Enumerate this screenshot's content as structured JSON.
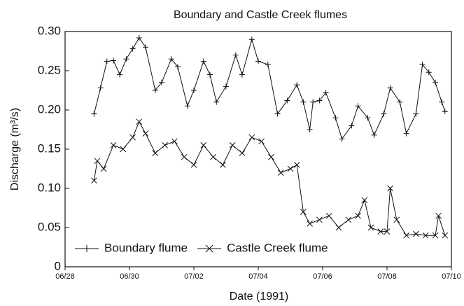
{
  "chart_data": {
    "type": "line",
    "title": "Boundary and Castle Creek flumes",
    "x_label": "Date (1991)",
    "y_label": "Discharge (m³/s)",
    "xlim": [
      28,
      40
    ],
    "xticks": [
      {
        "value": 28,
        "label": "06/28"
      },
      {
        "value": 30,
        "label": "06/30"
      },
      {
        "value": 32,
        "label": "07/02"
      },
      {
        "value": 34,
        "label": "07/04"
      },
      {
        "value": 36,
        "label": "07/06"
      },
      {
        "value": 38,
        "label": "07/08"
      },
      {
        "value": 40,
        "label": "07/10"
      }
    ],
    "ylim": [
      0,
      0.3
    ],
    "yticks": [
      0,
      {
        "value": 0.05,
        "label": "0.05"
      },
      {
        "value": 0.1,
        "label": "0.10"
      },
      {
        "value": 0.15,
        "label": "0.15"
      },
      {
        "value": 0.2,
        "label": "0.20"
      },
      {
        "value": 0.25,
        "label": "0.25"
      },
      {
        "value": 0.3,
        "label": "0.30"
      }
    ],
    "legend": "lower left",
    "series": [
      {
        "name": "Boundary flume",
        "color": "#111111",
        "marker": "+",
        "x": [
          28.9,
          29.1,
          29.3,
          29.5,
          29.7,
          29.9,
          30.1,
          30.3,
          30.5,
          30.8,
          31.0,
          31.3,
          31.5,
          31.8,
          32.0,
          32.3,
          32.5,
          32.7,
          33.0,
          33.3,
          33.5,
          33.8,
          34.0,
          34.3,
          34.6,
          34.9,
          35.2,
          35.4,
          35.6,
          35.7,
          35.9,
          36.1,
          36.4,
          36.6,
          36.9,
          37.1,
          37.4,
          37.6,
          37.9,
          38.1,
          38.4,
          38.6,
          38.9,
          39.1,
          39.3,
          39.5,
          39.7,
          39.8
        ],
        "values": [
          0.195,
          0.228,
          0.262,
          0.263,
          0.245,
          0.265,
          0.278,
          0.292,
          0.28,
          0.225,
          0.235,
          0.265,
          0.255,
          0.205,
          0.225,
          0.262,
          0.245,
          0.21,
          0.23,
          0.27,
          0.245,
          0.29,
          0.262,
          0.258,
          0.195,
          0.212,
          0.232,
          0.21,
          0.175,
          0.21,
          0.212,
          0.222,
          0.19,
          0.163,
          0.18,
          0.205,
          0.19,
          0.168,
          0.195,
          0.228,
          0.21,
          0.17,
          0.195,
          0.258,
          0.248,
          0.235,
          0.21,
          0.198
        ]
      },
      {
        "name": "Castle Creek flume",
        "color": "#111111",
        "marker": "x",
        "x": [
          28.9,
          29.0,
          29.2,
          29.5,
          29.8,
          30.1,
          30.3,
          30.5,
          30.8,
          31.1,
          31.4,
          31.7,
          32.0,
          32.3,
          32.6,
          32.9,
          33.2,
          33.5,
          33.8,
          34.1,
          34.4,
          34.7,
          35.0,
          35.2,
          35.4,
          35.6,
          35.9,
          36.2,
          36.5,
          36.8,
          37.1,
          37.3,
          37.5,
          37.8,
          38.0,
          38.1,
          38.3,
          38.6,
          38.9,
          39.2,
          39.5,
          39.6,
          39.8
        ],
        "values": [
          0.11,
          0.135,
          0.125,
          0.155,
          0.15,
          0.165,
          0.185,
          0.17,
          0.145,
          0.155,
          0.16,
          0.14,
          0.13,
          0.155,
          0.14,
          0.13,
          0.155,
          0.145,
          0.165,
          0.16,
          0.14,
          0.12,
          0.125,
          0.13,
          0.07,
          0.055,
          0.06,
          0.065,
          0.05,
          0.06,
          0.065,
          0.085,
          0.05,
          0.045,
          0.045,
          0.1,
          0.06,
          0.04,
          0.042,
          0.04,
          0.04,
          0.065,
          0.04
        ]
      }
    ]
  }
}
